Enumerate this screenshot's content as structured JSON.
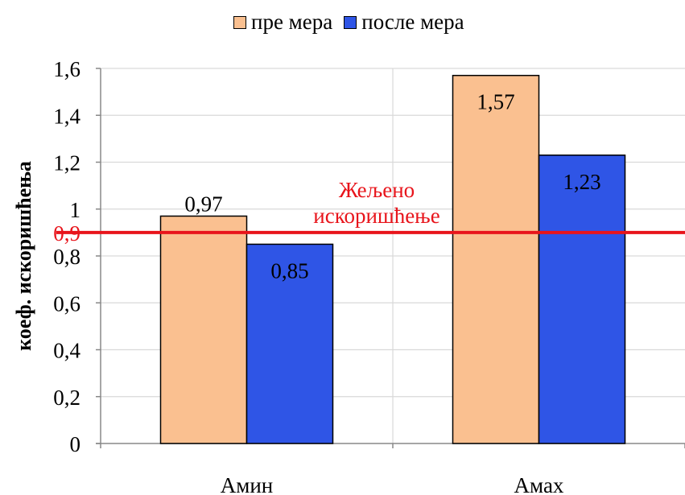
{
  "chart_data": {
    "type": "bar",
    "categories": [
      "Амин",
      "Амах"
    ],
    "series": [
      {
        "name": "пре мера",
        "values": [
          0.97,
          1.57
        ],
        "labels": [
          "0,97",
          "1,57"
        ],
        "color": "#FAC090"
      },
      {
        "name": "после мера",
        "values": [
          0.85,
          1.23
        ],
        "labels": [
          "0,85",
          "1,23"
        ],
        "color": "#2F55E6"
      }
    ],
    "ylabel": "коеф. искоришћења",
    "ylim": [
      0,
      1.6
    ],
    "yticks": [
      0,
      0.2,
      0.4,
      0.6,
      0.8,
      1,
      1.2,
      1.4,
      1.6
    ],
    "ytick_labels": [
      "0",
      "0,2",
      "0,4",
      "0,6",
      "0,8",
      "1",
      "1,2",
      "1,4",
      "1,6"
    ],
    "grid": true,
    "legend_position": "top",
    "reference_line": {
      "value": 0.9,
      "value_label": "0,9",
      "label_line1": "Жељено",
      "label_line2": "искоришћење",
      "color": "#E8141B"
    }
  }
}
